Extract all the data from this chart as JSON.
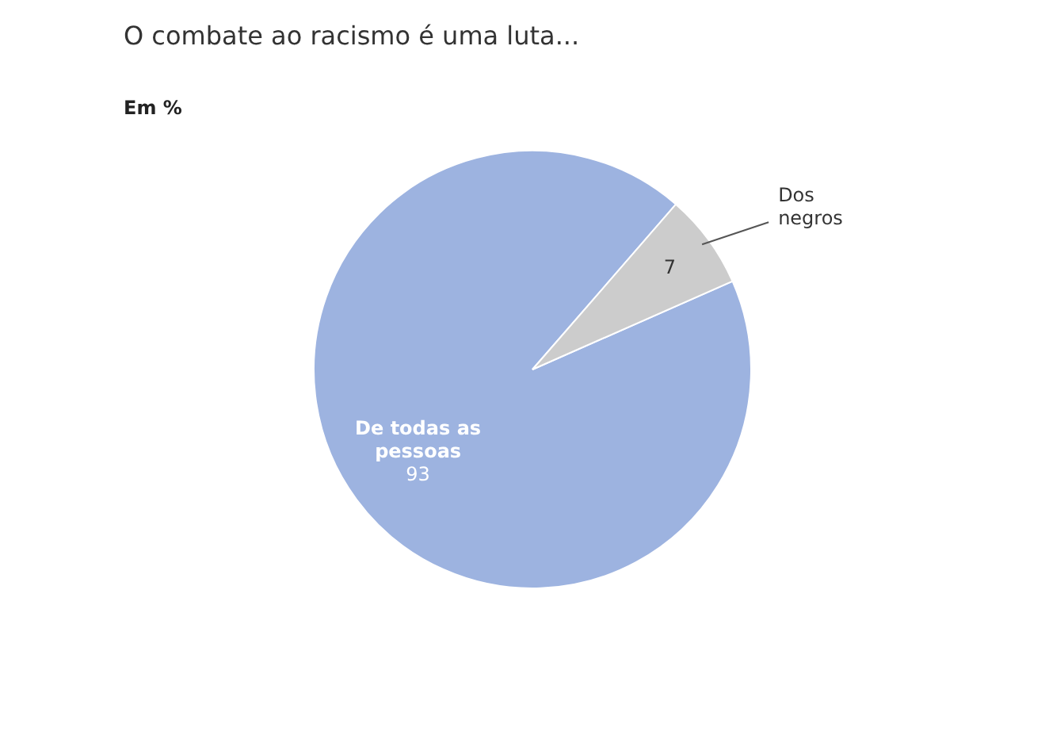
{
  "chart_data": {
    "type": "pie",
    "title": "O combate ao racismo é uma luta...",
    "subtitle": "Em %",
    "categories": [
      "De todas as pessoas",
      "Dos negros"
    ],
    "values": [
      93,
      7
    ],
    "colors": [
      "#9db3e0",
      "#cccccc"
    ],
    "data_labels": true
  }
}
